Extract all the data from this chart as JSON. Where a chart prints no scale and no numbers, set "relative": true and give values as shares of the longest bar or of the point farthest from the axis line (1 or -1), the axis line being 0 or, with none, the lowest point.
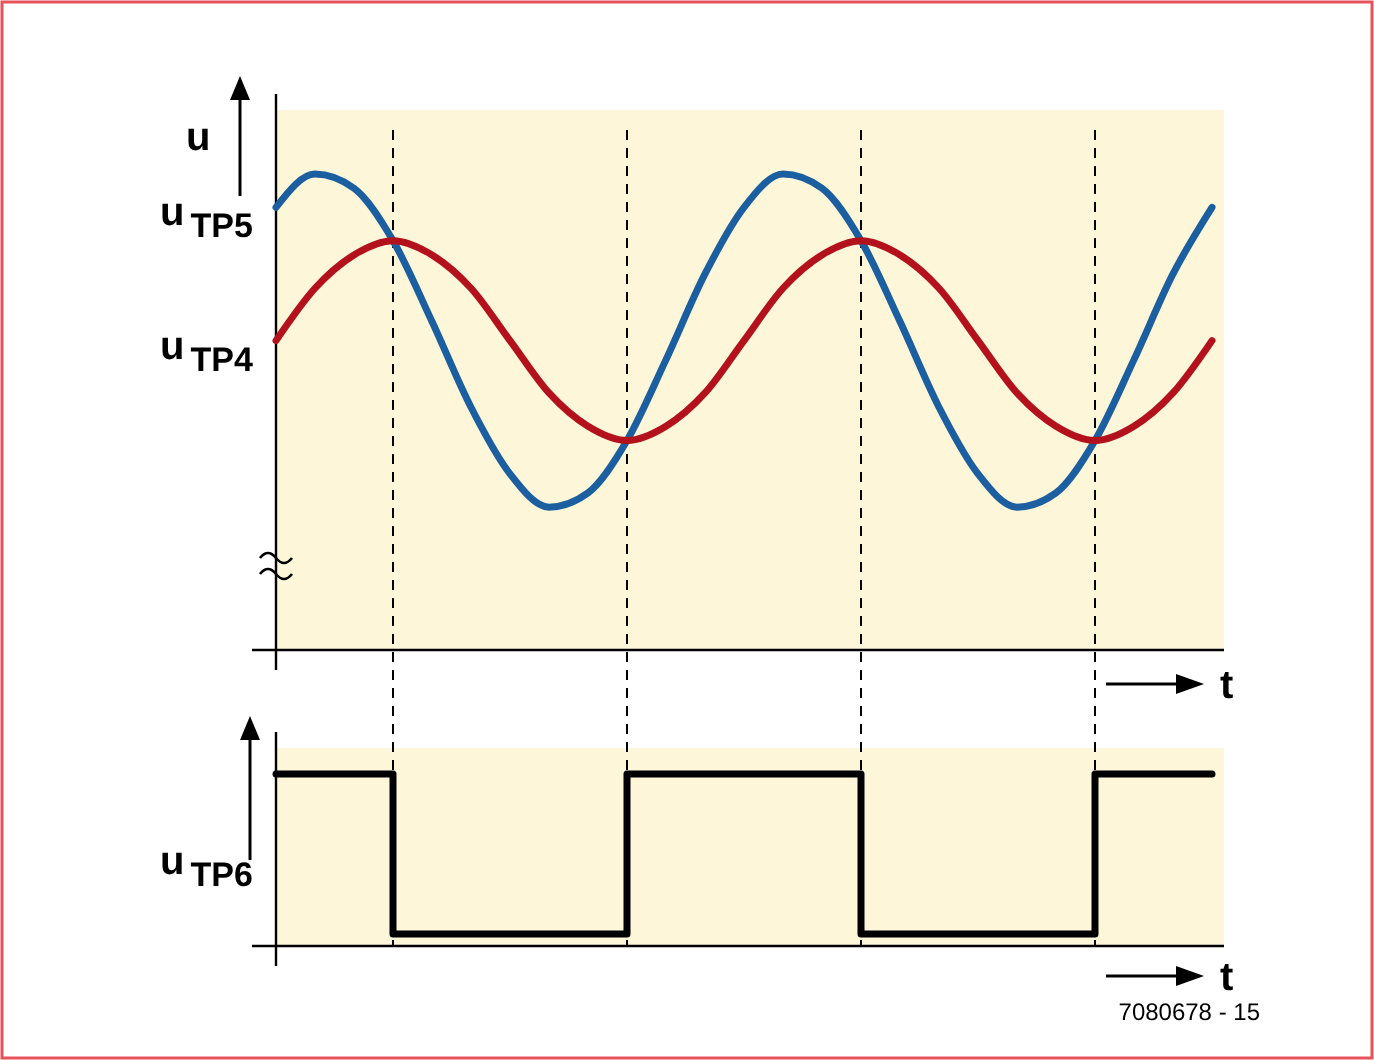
{
  "chart_data": [
    {
      "type": "line",
      "relative": true,
      "ylabel": "u",
      "xlabel": "t",
      "marker": "none",
      "line_style": "solid",
      "categories": [
        null,
        null,
        null,
        null,
        null,
        null,
        null,
        null,
        null,
        null,
        null,
        null,
        null,
        null,
        null,
        null,
        null,
        null,
        null,
        null,
        null,
        null,
        null,
        null,
        null
      ],
      "series": [
        {
          "name": "u$_{TP5}$",
          "color": "#1b5fa0",
          "values": [
            0.93,
            1.0,
            0.97,
            0.86,
            0.69,
            0.51,
            0.37,
            0.3,
            0.33,
            0.44,
            0.61,
            0.79,
            0.93,
            1.0,
            0.97,
            0.86,
            0.69,
            0.51,
            0.37,
            0.3,
            0.33,
            0.44,
            0.61,
            0.79,
            0.93
          ]
        },
        {
          "name": "u$_{TP4}$",
          "color": "#b3121c",
          "values": [
            0.65,
            0.76,
            0.83,
            0.86,
            0.83,
            0.76,
            0.65,
            0.54,
            0.47,
            0.44,
            0.47,
            0.54,
            0.65,
            0.76,
            0.83,
            0.86,
            0.83,
            0.76,
            0.65,
            0.54,
            0.47,
            0.44,
            0.47,
            0.54,
            0.65
          ]
        }
      ],
      "grid": "x"
    },
    {
      "type": "step",
      "relative": true,
      "ylabel": "u$_{TP6}$",
      "xlabel": "t",
      "marker": "none",
      "line_style": "solid",
      "categories": [
        null,
        null,
        null,
        null,
        null,
        null,
        null,
        null,
        null,
        null,
        null,
        null,
        null,
        null,
        null,
        null,
        null,
        null,
        null,
        null,
        null,
        null,
        null,
        null,
        null
      ],
      "series": [
        {
          "color": "#000000",
          "values": [
            1,
            1,
            1,
            0.07,
            0.07,
            0.07,
            0.07,
            0.07,
            0.07,
            1,
            1,
            1,
            1,
            1,
            1,
            0.07,
            0.07,
            0.07,
            0.07,
            0.07,
            0.07,
            1,
            1,
            1,
            1
          ]
        }
      ],
      "annotations": [
        "7080678 - 15"
      ]
    }
  ]
}
